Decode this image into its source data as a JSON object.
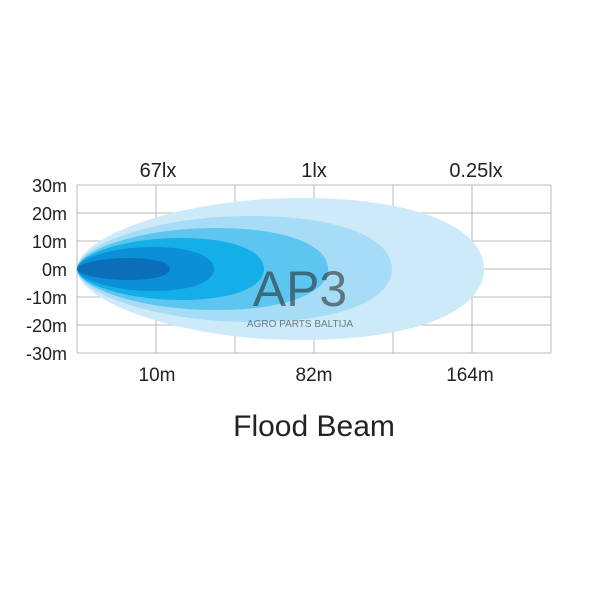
{
  "title": "Flood Beam",
  "lux_labels": [
    "67lx",
    "1lx",
    "0.25lx"
  ],
  "distance_labels": [
    "10m",
    "82m",
    "164m"
  ],
  "y_labels": [
    "30m",
    "20m",
    "10m",
    "0m",
    "-10m",
    "-20m",
    "-30m"
  ],
  "watermark": {
    "logo": "AP3",
    "text": "AGRO PARTS BALTIJA"
  },
  "beam_colors": [
    "#cdeaf9",
    "#a6dcf5",
    "#5cc6f0",
    "#14aee8",
    "#0b8fd6",
    "#0a6fb8"
  ]
}
